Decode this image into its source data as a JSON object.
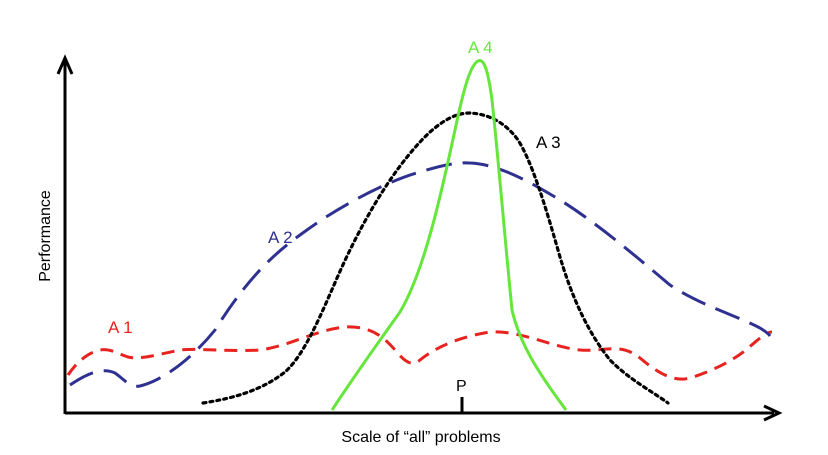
{
  "axes": {
    "x_label": "Scale of “all” problems",
    "y_label": "Performance",
    "x_marker_label": "P",
    "color": "#000000"
  },
  "curves": [
    {
      "label": "A 1",
      "color": "#e8231f",
      "style": "dashed",
      "description_shape": "low flat wavy"
    },
    {
      "label": "A 2",
      "color": "#2e3190",
      "style": "long-dashed",
      "description_shape": "broad peak"
    },
    {
      "label": "A 3",
      "color": "#000000",
      "style": "dotted",
      "description_shape": "medium peak"
    },
    {
      "label": "A 4",
      "color": "#66e63c",
      "style": "solid",
      "description_shape": "narrow tall peak"
    }
  ]
}
